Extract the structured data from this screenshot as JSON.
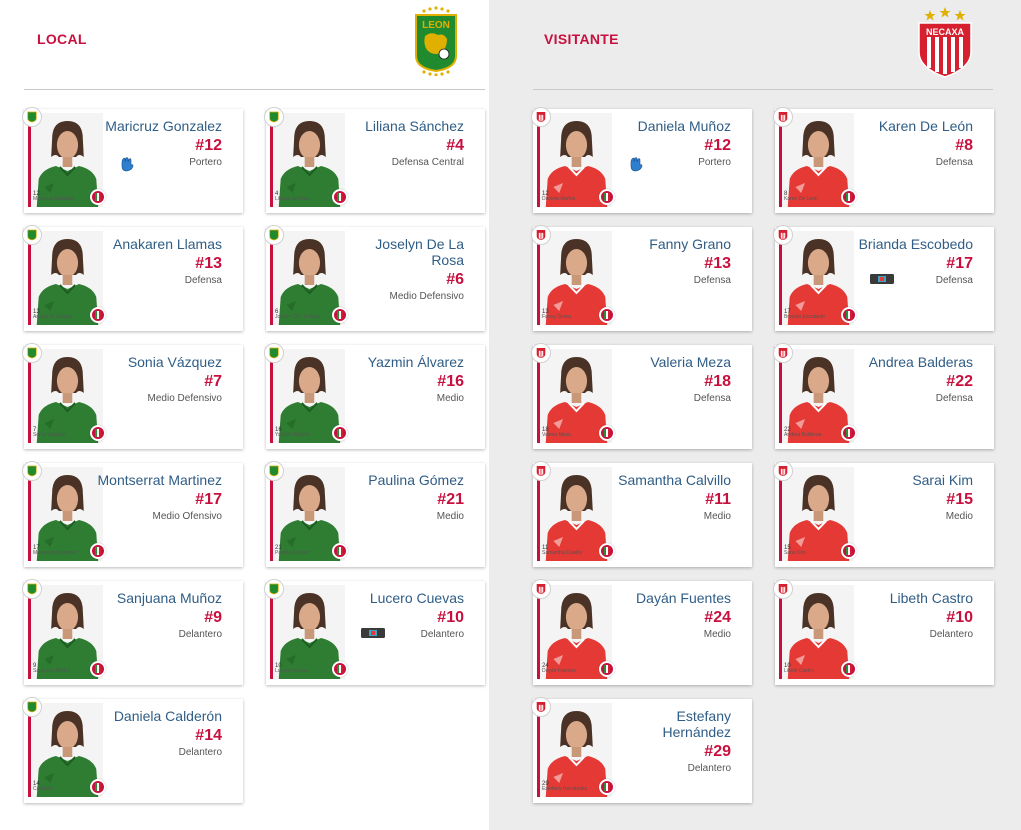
{
  "local": {
    "title": "LOCAL",
    "logo_icon": "leon-crest-icon",
    "accent_color": "#2e7d32",
    "players": [
      {
        "name": "Maricruz Gonzalez",
        "number": "#12",
        "position": "Portero",
        "caption": "Maricruz Gonzalez",
        "caption_number": "12",
        "icon": "goalkeeper-glove-icon"
      },
      {
        "name": "Liliana Sánchez",
        "number": "#4",
        "position": "Defensa Central",
        "caption": "Liliana Sánchez",
        "caption_number": "4",
        "icon": ""
      },
      {
        "name": "Anakaren Llamas",
        "number": "#13",
        "position": "Defensa",
        "caption": "Anakaren Llamas",
        "caption_number": "13",
        "icon": ""
      },
      {
        "name": "Joselyn De La Rosa",
        "number": "#6",
        "position": "Medio Defensivo",
        "caption": "Joselyn De La Rosa",
        "caption_number": "6",
        "icon": ""
      },
      {
        "name": "Sonia Vázquez",
        "number": "#7",
        "position": "Medio Defensivo",
        "caption": "Sonia Vázquez",
        "caption_number": "7",
        "icon": ""
      },
      {
        "name": "Yazmin Álvarez",
        "number": "#16",
        "position": "Medio",
        "caption": "Yazmin Álvarez",
        "caption_number": "16",
        "icon": ""
      },
      {
        "name": "Montserrat Martinez",
        "number": "#17",
        "position": "Medio Ofensivo",
        "caption": "Montserrat Martinez",
        "caption_number": "17",
        "icon": ""
      },
      {
        "name": "Paulina Gómez",
        "number": "#21",
        "position": "Medio",
        "caption": "Paulina Gómez",
        "caption_number": "21",
        "icon": ""
      },
      {
        "name": "Sanjuana Muñoz",
        "number": "#9",
        "position": "Delantero",
        "caption": "Sanjuana Muñoz",
        "caption_number": "9",
        "icon": ""
      },
      {
        "name": "Lucero Cuevas",
        "number": "#10",
        "position": "Delantero",
        "caption": "Lucero Cuevas",
        "caption_number": "10",
        "icon": "captain-band-icon"
      },
      {
        "name": "Daniela Calderón",
        "number": "#14",
        "position": "Delantero",
        "caption": "Calderon",
        "caption_number": "14",
        "icon": ""
      }
    ]
  },
  "visit": {
    "title": "VISITANTE",
    "logo_icon": "necaxa-crest-icon",
    "accent_color": "#e53935",
    "players": [
      {
        "name": "Daniela Muñoz",
        "number": "#12",
        "position": "Portero",
        "caption": "Daniela Muñoz",
        "caption_number": "12",
        "icon": "goalkeeper-glove-icon"
      },
      {
        "name": "Karen De León",
        "number": "#8",
        "position": "Defensa",
        "caption": "Karen De León",
        "caption_number": "8",
        "icon": ""
      },
      {
        "name": "Fanny Grano",
        "number": "#13",
        "position": "Defensa",
        "caption": "Fanny Grano",
        "caption_number": "13",
        "icon": ""
      },
      {
        "name": "Brianda Escobedo",
        "number": "#17",
        "position": "Defensa",
        "caption": "Brianda Escobedo",
        "caption_number": "17",
        "icon": "captain-band-icon"
      },
      {
        "name": "Valeria Meza",
        "number": "#18",
        "position": "Defensa",
        "caption": "Valeria Meza",
        "caption_number": "18",
        "icon": ""
      },
      {
        "name": "Andrea Balderas",
        "number": "#22",
        "position": "Defensa",
        "caption": "Andrea Balderas",
        "caption_number": "22",
        "icon": ""
      },
      {
        "name": "Samantha Calvillo",
        "number": "#11",
        "position": "Medio",
        "caption": "Samantha Calvillo",
        "caption_number": "11",
        "icon": ""
      },
      {
        "name": "Sarai Kim",
        "number": "#15",
        "position": "Medio",
        "caption": "Sarai Kim",
        "caption_number": "15",
        "icon": ""
      },
      {
        "name": "Dayán Fuentes",
        "number": "#24",
        "position": "Medio",
        "caption": "Dayán Fuentes",
        "caption_number": "24",
        "icon": ""
      },
      {
        "name": "Libeth Castro",
        "number": "#10",
        "position": "Delantero",
        "caption": "Libeth Castro",
        "caption_number": "10",
        "icon": ""
      },
      {
        "name": "Estefany Hernández",
        "number": "#29",
        "position": "Delantero",
        "caption": "Estefany Hernández",
        "caption_number": "29",
        "icon": ""
      }
    ]
  }
}
